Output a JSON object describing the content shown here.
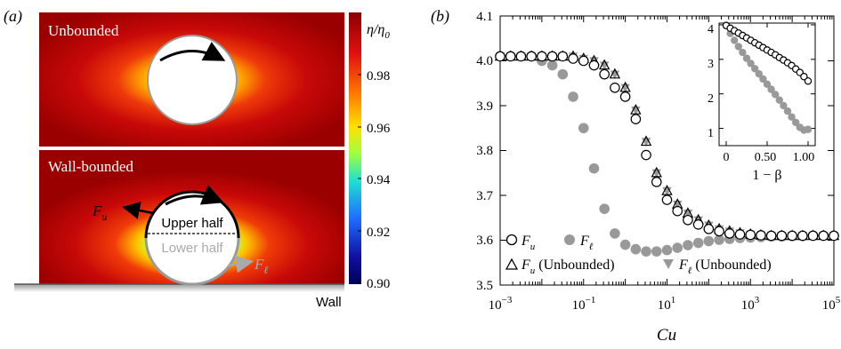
{
  "panel_a": {
    "label": "(a)",
    "top_panel_title": "Unbounded",
    "bottom_panel_title": "Wall-bounded",
    "upper_half_label": "Upper half",
    "lower_half_label": "Lower half",
    "force_upper_label": "F",
    "force_upper_sub": "u",
    "force_lower_label": "F",
    "force_lower_sub": "ℓ",
    "wall_label": "Wall",
    "colorbar": {
      "title": "η/η",
      "title_sub": "0",
      "ticks": [
        "0.98",
        "0.96",
        "0.94",
        "0.92",
        "0.90"
      ],
      "colors": [
        "#8b0000",
        "#e01010",
        "#ff7a00",
        "#ffe000",
        "#a0ff40",
        "#20e0d0",
        "#1e6cff",
        "#1010a0",
        "#00005a"
      ]
    }
  },
  "panel_b": {
    "label": "(b)",
    "xlabel": "Cu",
    "legend": {
      "fu": {
        "label": "F",
        "sub": "u",
        "suffix": ""
      },
      "fl": {
        "label": "F",
        "sub": "ℓ",
        "suffix": ""
      },
      "fu_unb": {
        "label": "F",
        "sub": "u",
        "suffix": " (Unbounded)"
      },
      "fl_unb": {
        "label": "F",
        "sub": "ℓ",
        "suffix": " (Unbounded)"
      }
    },
    "yticks": [
      "4.1",
      "4.0",
      "3.9",
      "3.8",
      "3.7",
      "3.6",
      "3.5"
    ],
    "xticks": [
      {
        "base": "10",
        "exp": "−3"
      },
      {
        "base": "10",
        "exp": "−1"
      },
      {
        "base": "10",
        "exp": "1"
      },
      {
        "base": "10",
        "exp": "3"
      },
      {
        "base": "10",
        "exp": "5"
      }
    ],
    "inset": {
      "xlabel": "1 − β",
      "xticks": [
        "0",
        "0.50",
        "1.00"
      ],
      "yticks": [
        "4",
        "3",
        "2",
        "1"
      ]
    }
  },
  "chart_data": [
    {
      "type": "scatter",
      "xscale": "log",
      "xlabel": "Cu",
      "ylabel": "",
      "xlim": [
        0.001,
        100000
      ],
      "ylim": [
        3.5,
        4.1
      ],
      "series": [
        {
          "name": "F_u",
          "marker": "open-circle",
          "color": "#000000",
          "x": [
            0.001,
            0.00178,
            0.00316,
            0.00562,
            0.01,
            0.0178,
            0.0316,
            0.0562,
            0.1,
            0.178,
            0.316,
            0.562,
            1,
            1.78,
            3.16,
            5.62,
            10,
            17.8,
            31.6,
            56.2,
            100,
            178,
            316,
            562,
            1000,
            1780,
            3160,
            5620,
            10000,
            17800,
            31600,
            56200,
            100000
          ],
          "y": [
            4.01,
            4.01,
            4.01,
            4.01,
            4.01,
            4.01,
            4.01,
            4.005,
            4.0,
            3.99,
            3.97,
            3.94,
            3.92,
            3.87,
            3.79,
            3.73,
            3.69,
            3.665,
            3.645,
            3.635,
            3.625,
            3.62,
            3.615,
            3.613,
            3.612,
            3.611,
            3.61,
            3.61,
            3.61,
            3.61,
            3.61,
            3.61,
            3.61
          ]
        },
        {
          "name": "F_ℓ",
          "marker": "filled-circle",
          "color": "#999999",
          "x": [
            0.001,
            0.00178,
            0.00316,
            0.00562,
            0.01,
            0.0178,
            0.0316,
            0.0562,
            0.1,
            0.178,
            0.316,
            0.562,
            1,
            1.78,
            3.16,
            5.62,
            10,
            17.8,
            31.6,
            56.2,
            100,
            178,
            316,
            562,
            1000,
            1780,
            3160,
            5620,
            10000,
            17800,
            31600,
            56200,
            100000
          ],
          "y": [
            4.01,
            4.01,
            4.01,
            4.01,
            4.0,
            3.99,
            3.97,
            3.92,
            3.85,
            3.76,
            3.67,
            3.615,
            3.59,
            3.58,
            3.575,
            3.575,
            3.578,
            3.583,
            3.589,
            3.594,
            3.598,
            3.601,
            3.603,
            3.605,
            3.606,
            3.607,
            3.608,
            3.608,
            3.609,
            3.609,
            3.61,
            3.61,
            3.61
          ]
        },
        {
          "name": "F_u (Unbounded)",
          "marker": "open-triangle-up",
          "color": "#000000",
          "x": [
            0.001,
            0.00178,
            0.00316,
            0.00562,
            0.01,
            0.0178,
            0.0316,
            0.0562,
            0.1,
            0.178,
            0.316,
            0.562,
            1,
            1.78,
            3.16,
            5.62,
            10,
            17.8,
            31.6,
            56.2,
            100,
            178,
            316,
            562,
            1000,
            1780,
            3160,
            5620,
            10000,
            17800,
            31600,
            56200,
            100000
          ],
          "y": [
            4.01,
            4.01,
            4.01,
            4.01,
            4.01,
            4.01,
            4.01,
            4.01,
            4.005,
            4.0,
            3.99,
            3.97,
            3.94,
            3.89,
            3.82,
            3.75,
            3.71,
            3.68,
            3.66,
            3.645,
            3.633,
            3.625,
            3.62,
            3.616,
            3.613,
            3.611,
            3.61,
            3.61,
            3.61,
            3.61,
            3.61,
            3.61,
            3.61
          ]
        },
        {
          "name": "F_ℓ (Unbounded)",
          "marker": "filled-triangle-down",
          "color": "#999999",
          "x": [
            0.001,
            0.00178,
            0.00316,
            0.00562,
            0.01,
            0.0178,
            0.0316,
            0.0562,
            0.1,
            0.178,
            0.316,
            0.562,
            1,
            1.78,
            3.16,
            5.62,
            10,
            17.8,
            31.6,
            56.2,
            100,
            178,
            316,
            562,
            1000,
            1780,
            3160,
            5620,
            10000,
            17800,
            31600,
            56200,
            100000
          ],
          "y": [
            4.01,
            4.01,
            4.01,
            4.01,
            4.01,
            4.01,
            4.01,
            4.01,
            4.005,
            4.0,
            3.99,
            3.97,
            3.94,
            3.89,
            3.82,
            3.75,
            3.71,
            3.68,
            3.66,
            3.645,
            3.633,
            3.625,
            3.62,
            3.616,
            3.613,
            3.611,
            3.61,
            3.61,
            3.61,
            3.61,
            3.61,
            3.61,
            3.61
          ]
        }
      ]
    },
    {
      "type": "scatter",
      "xlabel": "1 − β",
      "ylabel": "",
      "xlim": [
        0,
        1.05
      ],
      "ylim": [
        0.5,
        4.05
      ],
      "series": [
        {
          "name": "F_u",
          "marker": "open-circle",
          "color": "#000000",
          "x": [
            0,
            0.05,
            0.1,
            0.15,
            0.2,
            0.25,
            0.3,
            0.35,
            0.4,
            0.45,
            0.5,
            0.55,
            0.6,
            0.65,
            0.7,
            0.75,
            0.8,
            0.85,
            0.9,
            0.95,
            1.0
          ],
          "y": [
            3.98,
            3.9,
            3.83,
            3.76,
            3.69,
            3.62,
            3.55,
            3.48,
            3.41,
            3.34,
            3.27,
            3.2,
            3.13,
            3.05,
            2.98,
            2.9,
            2.82,
            2.72,
            2.62,
            2.5,
            2.37
          ]
        },
        {
          "name": "F_ℓ",
          "marker": "filled-circle",
          "color": "#999999",
          "x": [
            0,
            0.05,
            0.1,
            0.15,
            0.2,
            0.25,
            0.3,
            0.35,
            0.4,
            0.45,
            0.5,
            0.55,
            0.6,
            0.65,
            0.7,
            0.75,
            0.8,
            0.85,
            0.9,
            0.95,
            1.0
          ],
          "y": [
            3.98,
            3.75,
            3.55,
            3.37,
            3.2,
            3.03,
            2.88,
            2.73,
            2.58,
            2.43,
            2.28,
            2.13,
            1.98,
            1.82,
            1.66,
            1.5,
            1.33,
            1.17,
            1.03,
            0.95,
            0.97
          ]
        }
      ]
    }
  ]
}
